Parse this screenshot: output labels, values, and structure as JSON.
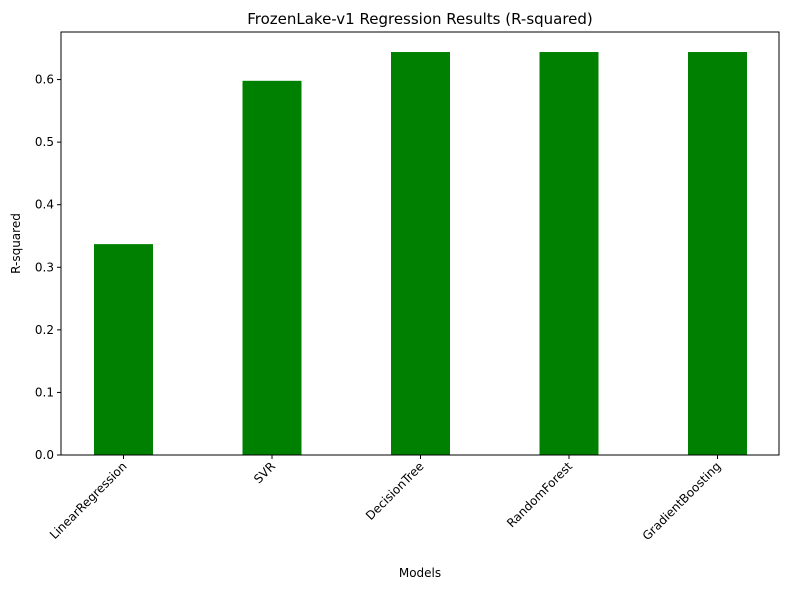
{
  "chart_data": {
    "type": "bar",
    "title": "FrozenLake-v1 Regression Results (R-squared)",
    "xlabel": "Models",
    "ylabel": "R-squared",
    "categories": [
      "LinearRegression",
      "SVR",
      "DecisionTree",
      "RandomForest",
      "GradientBoosting"
    ],
    "values": [
      0.337,
      0.598,
      0.644,
      0.644,
      0.644
    ],
    "ylim": [
      0,
      0.676
    ],
    "yticks": [
      0.0,
      0.1,
      0.2,
      0.3,
      0.4,
      0.5,
      0.6
    ],
    "ytick_labels": [
      "0.0",
      "0.1",
      "0.2",
      "0.3",
      "0.4",
      "0.5",
      "0.6"
    ],
    "bar_color": "#008000",
    "grid": false,
    "legend": "none"
  }
}
